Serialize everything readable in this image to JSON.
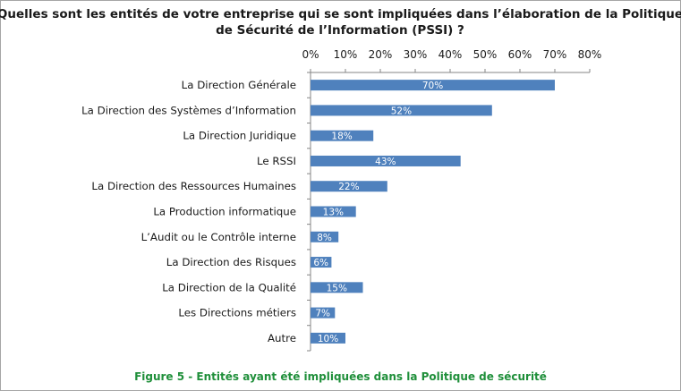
{
  "chart_data": {
    "type": "bar",
    "orientation": "horizontal",
    "title_line1": "Quelles sont les entités de votre entreprise qui se sont impliquées dans l’élaboration de la Politique",
    "title_line2": "de Sécurité de l’Information (PSSI) ?",
    "categories": [
      "La Direction Générale",
      "La Direction des Systèmes d’Information",
      "La Direction Juridique",
      "Le RSSI",
      "La Direction des Ressources Humaines",
      "La Production informatique",
      "L’Audit ou le Contrôle interne",
      "La Direction des Risques",
      "La Direction de la Qualité",
      "Les Directions métiers",
      "Autre"
    ],
    "values": [
      70,
      52,
      18,
      43,
      22,
      13,
      8,
      6,
      15,
      7,
      10
    ],
    "data_labels": [
      "70%",
      "52%",
      "18%",
      "43%",
      "22%",
      "13%",
      "8%",
      "6%",
      "15%",
      "7%",
      "10%"
    ],
    "xlim": [
      0,
      80
    ],
    "x_ticks": [
      "0%",
      "10%",
      "20%",
      "30%",
      "40%",
      "50%",
      "60%",
      "70%",
      "80%"
    ],
    "x_axis_position": "top",
    "grid": false,
    "legend": "none",
    "bar_color": "#4f81bd"
  },
  "caption": "Figure 5 - Entités ayant été impliquées dans la Politique de sécurité"
}
